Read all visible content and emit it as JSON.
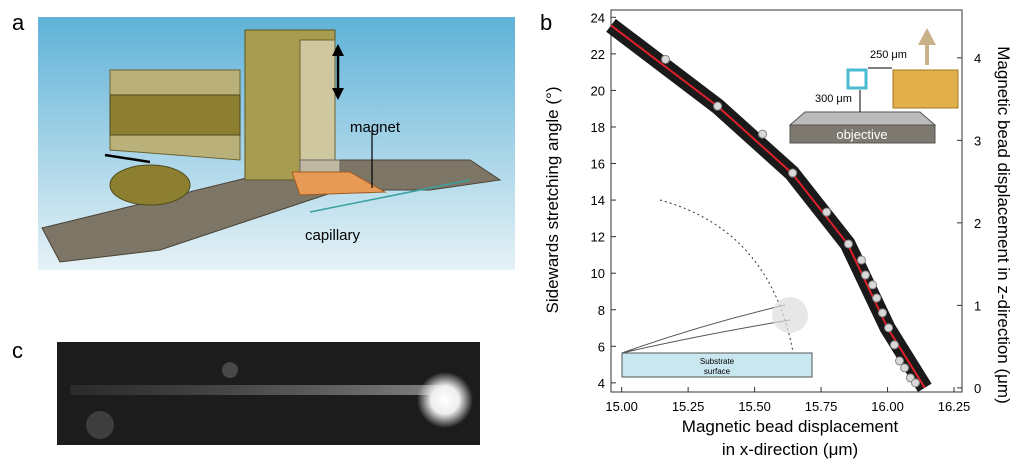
{
  "panel_a": {
    "label": "a",
    "magnet": "magnet",
    "capillary": "capillary"
  },
  "panel_c": {
    "label": "c"
  },
  "chart_data": {
    "type": "scatter",
    "label": "b",
    "xlabel": [
      "Magnetic bead displacement",
      "in x-direction (μm)"
    ],
    "ylabel": "Sidewards stretching angle (°)",
    "y2label": "Magnetic bead displacement  in z-direction (μm)",
    "xlim": [
      14.96,
      16.28
    ],
    "xticks": [
      {
        "value": 15,
        "label": "15.00"
      },
      {
        "value": 15.25,
        "label": "15.25"
      },
      {
        "value": 15.5,
        "label": "15.50"
      },
      {
        "value": 15.75,
        "label": "15.75"
      },
      {
        "value": 16,
        "label": "16.00"
      },
      {
        "value": 16.25,
        "label": "16.25"
      }
    ],
    "ylim": [
      3.5,
      24.4
    ],
    "yticks": [
      4,
      6,
      8,
      10,
      12,
      14,
      16,
      18,
      20,
      22,
      24
    ],
    "y2lim": [
      -0.05,
      4.58
    ],
    "y2ticks": [
      0,
      1,
      2,
      3,
      4
    ],
    "points": {
      "color": "#d9d9d9",
      "x": [
        15.165,
        15.361,
        15.53,
        15.643,
        15.771,
        15.853,
        15.902,
        15.917,
        15.944,
        15.959,
        15.981,
        16.004,
        16.026,
        16.045,
        16.064,
        16.086,
        16.105
      ],
      "y": [
        21.7,
        19.14,
        17.61,
        15.48,
        13.34,
        11.6,
        10.72,
        9.9,
        9.36,
        8.64,
        7.83,
        7.01,
        6.08,
        5.2,
        4.82,
        4.27,
        4.0
      ]
    },
    "fit": {
      "color": "#e0202a",
      "x": [
        14.96,
        15.36,
        15.64,
        15.85,
        16.0,
        16.14
      ],
      "y": [
        23.56,
        19.14,
        15.48,
        11.6,
        7.01,
        3.73
      ]
    },
    "annotations": {
      "lateral": "250 μm",
      "vertical": "300 μm",
      "objective": "objective",
      "substrate": [
        "Substrate",
        "surface"
      ]
    }
  }
}
